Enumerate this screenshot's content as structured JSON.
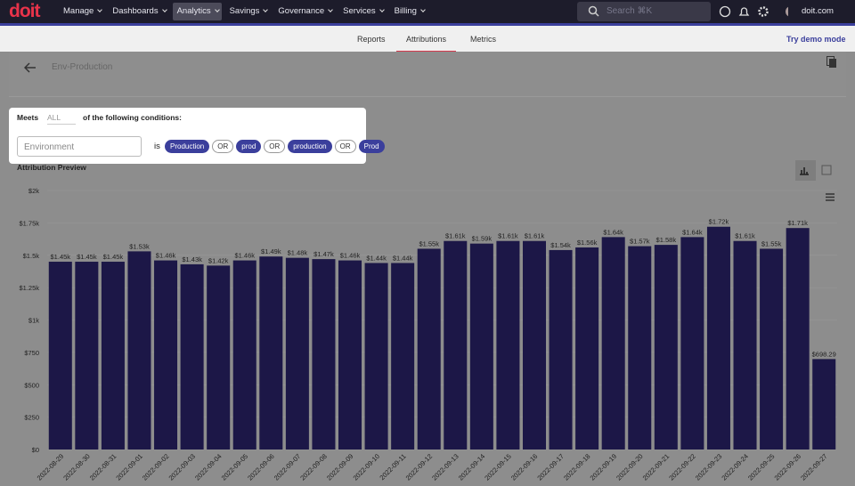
{
  "nav": {
    "logo": "doit",
    "menu": [
      "Manage",
      "Dashboards",
      "Analytics",
      "Savings",
      "Governance",
      "Services",
      "Billing"
    ],
    "search": "Search ⌘K",
    "account": "doit.com"
  },
  "tabs": {
    "items": [
      "Reports",
      "Attributions",
      "Metrics"
    ],
    "demo": "Try demo mode"
  },
  "attribution": {
    "name": "Env-Production"
  },
  "conditions": {
    "meets": "Meets",
    "mode": "ALL",
    "suffix": "of the following conditions:",
    "field": "Environment",
    "operator": "is",
    "chips": [
      "Production",
      "OR",
      "prod",
      "OR",
      "production",
      "OR",
      "Prod"
    ]
  },
  "preview": {
    "title": "Attribution Preview"
  },
  "chart_data": {
    "type": "bar",
    "color": "#1c1747",
    "grid": true,
    "categories": [
      "2022-08-29",
      "2022-08-30",
      "2022-08-31",
      "2022-09-01",
      "2022-09-02",
      "2022-09-03",
      "2022-09-04",
      "2022-09-05",
      "2022-09-06",
      "2022-09-07",
      "2022-09-08",
      "2022-09-09",
      "2022-09-10",
      "2022-09-11",
      "2022-09-12",
      "2022-09-13",
      "2022-09-14",
      "2022-09-15",
      "2022-09-16",
      "2022-09-17",
      "2022-09-18",
      "2022-09-19",
      "2022-09-20",
      "2022-09-21",
      "2022-09-22",
      "2022-09-23",
      "2022-09-24",
      "2022-09-25",
      "2022-09-26",
      "2022-09-27"
    ],
    "values": [
      1450,
      1450,
      1450,
      1530,
      1460,
      1430,
      1420,
      1460,
      1490,
      1480,
      1470,
      1460,
      1440,
      1440,
      1550,
      1610,
      1590,
      1610,
      1610,
      1540,
      1560,
      1640,
      1570,
      1580,
      1640,
      1720,
      1610,
      1550,
      1710,
      698.29
    ],
    "value_labels": [
      "$1.45k",
      "$1.45k",
      "$1.45k",
      "$1.53k",
      "$1.46k",
      "$1.43k",
      "$1.42k",
      "$1.46k",
      "$1.49k",
      "$1.48k",
      "$1.47k",
      "$1.46k",
      "$1.44k",
      "$1.44k",
      "$1.55k",
      "$1.61k",
      "$1.59k",
      "$1.61k",
      "$1.61k",
      "$1.54k",
      "$1.56k",
      "$1.64k",
      "$1.57k",
      "$1.58k",
      "$1.64k",
      "$1.72k",
      "$1.61k",
      "$1.55k",
      "$1.71k",
      "$698.29"
    ],
    "ylim": [
      0,
      2000
    ],
    "yticks": [
      {
        "value": 0,
        "label": "$0"
      },
      {
        "value": 250,
        "label": "$250"
      },
      {
        "value": 500,
        "label": "$500"
      },
      {
        "value": 750,
        "label": "$750"
      },
      {
        "value": 1000,
        "label": "$1k"
      },
      {
        "value": 1250,
        "label": "$1.25k"
      },
      {
        "value": 1500,
        "label": "$1.5k"
      },
      {
        "value": 1750,
        "label": "$1.75k"
      },
      {
        "value": 2000,
        "label": "$2k"
      }
    ]
  }
}
